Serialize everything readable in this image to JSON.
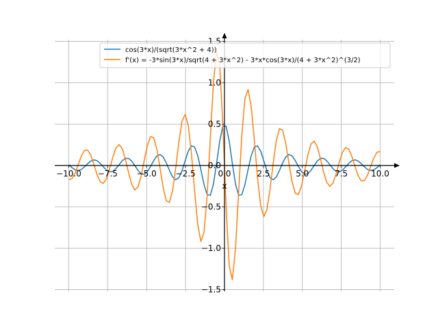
{
  "chart_data": {
    "type": "line",
    "title": "",
    "xlabel": "x",
    "ylabel": "",
    "xlim": [
      -10.9,
      10.9
    ],
    "ylim": [
      -1.52,
      1.52
    ],
    "x_ticks": [
      -10.0,
      -7.5,
      -5.0,
      -2.5,
      0.0,
      2.5,
      5.0,
      7.5,
      10.0
    ],
    "x_tick_labels": [
      "−10.0",
      "−7.5",
      "−5.0",
      "−2.5",
      "0.0",
      "2.5",
      "5.0",
      "7.5",
      "10.0"
    ],
    "y_ticks": [
      -1.5,
      -1.0,
      -0.5,
      0.0,
      0.5,
      1.0,
      1.5
    ],
    "y_tick_labels": [
      "−1.5",
      "−1.0",
      "−0.5",
      "0.0",
      "0.5",
      "1.0",
      "1.5"
    ],
    "grid": true,
    "legend_position": "top-center",
    "x_range": [
      -10,
      10
    ],
    "x_count": 100,
    "series": [
      {
        "name": "cos(3*x)/(sqrt(3*x^2 + 4))",
        "color": "#1f77b4",
        "expression": "f"
      },
      {
        "name": "f'(x) = -3*sin(3*x)/sqrt(4 + 3*x^2) - 3*x*cos(3*x)/(4 + 3*x^2)^(3/2)",
        "color": "#ff7f0e",
        "expression": "fprime"
      }
    ]
  }
}
